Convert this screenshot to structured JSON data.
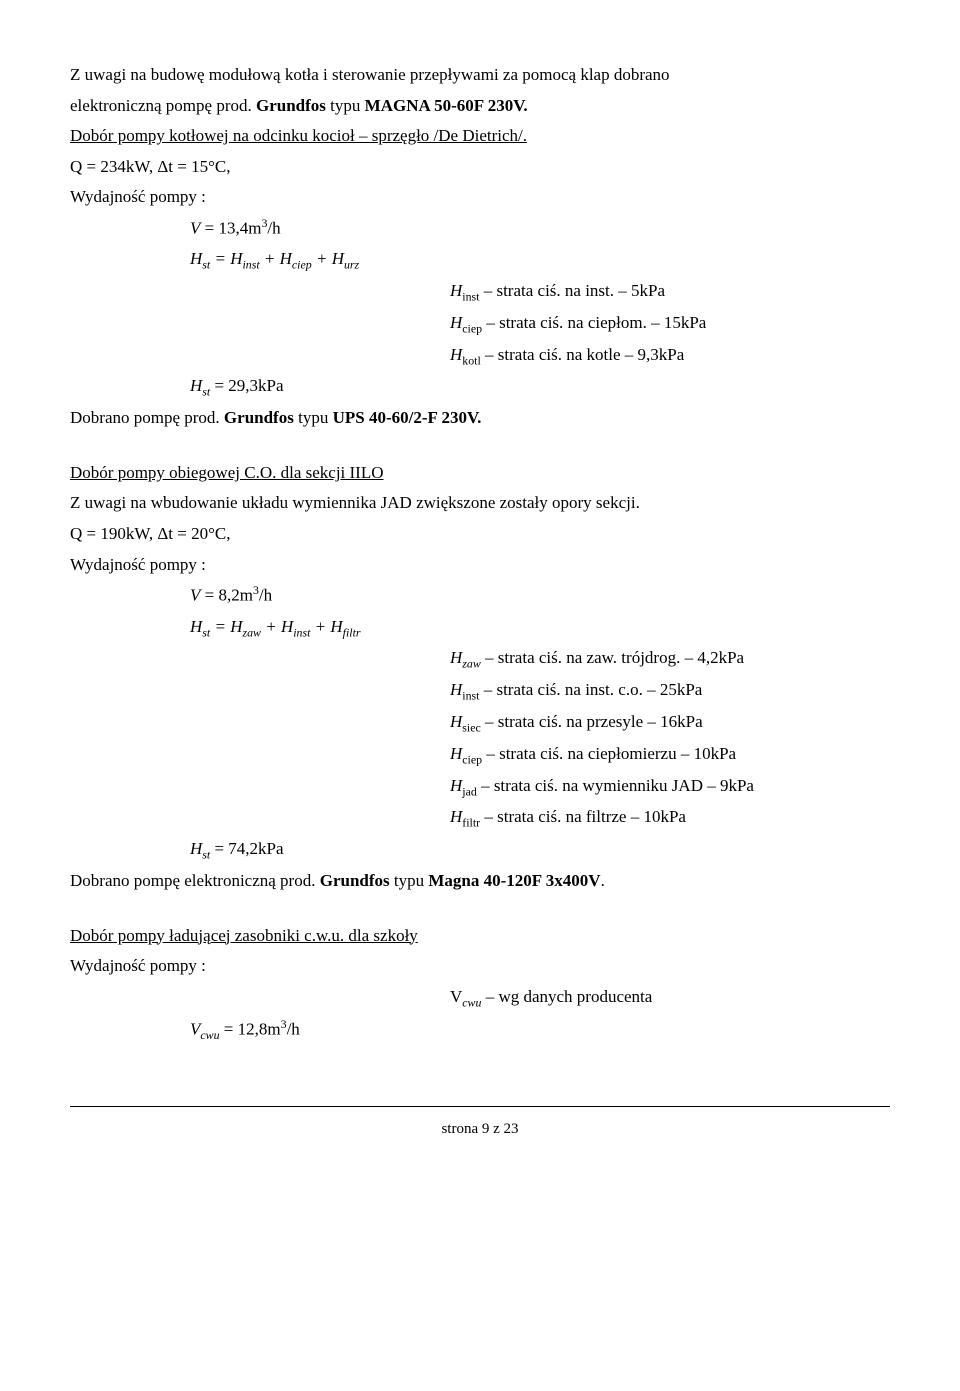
{
  "p1_l1": "Z uwagi na budowę modułową kotła i sterowanie przepływami za pomocą klap dobrano",
  "p1_l2a": "elektroniczną pompę prod. ",
  "p1_l2b": "Grundfos",
  "p1_l2c": " typu ",
  "p1_l2d": "MAGNA 50-60F 230V.",
  "p2": "Dobór pompy kotłowej na odcinku kocioł – sprzęgło /De Dietrich/.",
  "p3": "Q = 234kW,  Δt = 15°C,",
  "p4": "Wydajność pompy :",
  "eq1a_pre": "V",
  "eq1a_eq": " = 13,4m",
  "eq1a_sup": "3",
  "eq1a_post": "/h",
  "eq1b_pre": "H",
  "eq1b_sub1": "st",
  "eq1b_mid1": " = H",
  "eq1b_sub2": "inst",
  "eq1b_mid2": " + H",
  "eq1b_sub3": "ciep",
  "eq1b_mid3": " +  H",
  "eq1b_sub4": "urz",
  "r1a_pre": "H",
  "r1a_sub": "inst",
  "r1a_post": " – strata ciś. na inst. – 5kPa",
  "r1b_pre": "H",
  "r1b_sub": "ciep",
  "r1b_post": " – strata ciś. na ciepłom. – 15kPa",
  "r1c_pre": "H",
  "r1c_sub": "kotl",
  "r1c_post": " – strata ciś. na kotle – 9,3kPa",
  "eq1c_pre": "H",
  "eq1c_sub": "st",
  "eq1c_post": " = 29,3kPa",
  "p5a": "Dobrano pompę prod. ",
  "p5b": "Grundfos",
  "p5c": " typu ",
  "p5d": "UPS 40-60/2-F 230V.",
  "p6": "Dobór pompy obiegowej C.O. dla sekcji IILO",
  "p7": "Z uwagi na wbudowanie układu wymiennika JAD zwiększone zostały opory sekcji.",
  "p8": "Q = 190kW,  Δt = 20°C,",
  "p9": "Wydajność pompy :",
  "eq2a_pre": "V",
  "eq2a_eq": " = 8,2m",
  "eq2a_sup": "3",
  "eq2a_post": "/h",
  "eq2b_pre": "H",
  "eq2b_sub1": "st",
  "eq2b_mid1": " = H",
  "eq2b_sub2": "zaw",
  "eq2b_mid2": " + H",
  "eq2b_sub3": "inst",
  "eq2b_mid3": " +  H",
  "eq2b_sub4": "filtr",
  "r2a_pre": "H",
  "r2a_sub": "zaw",
  "r2a_post": " – strata ciś. na zaw. trójdrog. – 4,2kPa",
  "r2b_pre": "H",
  "r2b_sub": "inst",
  "r2b_post": " – strata ciś. na inst. c.o. – 25kPa",
  "r2c_pre": "H",
  "r2c_sub": "siec",
  "r2c_post": " – strata ciś. na przesyle – 16kPa",
  "r2d_pre": "H",
  "r2d_sub": "ciep",
  "r2d_post": " – strata ciś. na ciepłomierzu – 10kPa",
  "r2e_pre": "H",
  "r2e_sub": "jad",
  "r2e_post": " – strata ciś. na wymienniku JAD – 9kPa",
  "r2f_pre": "H",
  "r2f_sub": "filtr",
  "r2f_post": " – strata ciś. na filtrze – 10kPa",
  "eq2c_pre": "H",
  "eq2c_sub": "st",
  "eq2c_post": " = 74,2kPa",
  "p10a": "Dobrano pompę elektroniczną prod. ",
  "p10b": "Grundfos",
  "p10c": " typu ",
  "p10d": "Magna 40-120F 3x400V",
  "p10e": ".",
  "p11": "Dobór pompy ładującej zasobniki c.w.u. dla szkoły",
  "p12": "Wydajność pompy :",
  "r3_pre": "V",
  "r3_sub": "cwu",
  "r3_post": " – wg danych producenta",
  "eq3_pre": "V",
  "eq3_sub": "cwu",
  "eq3_mid": " = 12,8m",
  "eq3_sup": "3",
  "eq3_post": "/h",
  "footer": "strona 9 z 23"
}
